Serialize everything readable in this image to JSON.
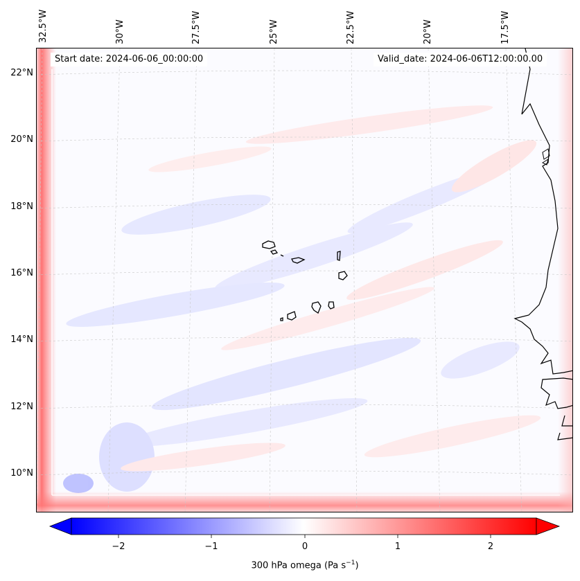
{
  "map": {
    "start_date": "Start date: 2024-06-06_00:00:00",
    "valid_date": "Valid_date: 2024-06-06T12:00:00.00",
    "lon_labels": [
      "32.5°W",
      "30°W",
      "27.5°W",
      "25°W",
      "22.5°W",
      "20°W",
      "17.5°W"
    ],
    "lat_labels": [
      "22°N",
      "20°N",
      "18°N",
      "16°N",
      "14°N",
      "12°N",
      "10°N"
    ],
    "colors": {
      "negative": "#0000ff",
      "neutral": "#ffffff",
      "positive": "#ff0000",
      "coast": "#000000"
    }
  },
  "colorbar": {
    "ticks": [
      "−2",
      "−1",
      "0",
      "1",
      "2"
    ],
    "title_main": "300 hPa omega (Pa s",
    "title_sup": "−1",
    "title_end": ")"
  }
}
